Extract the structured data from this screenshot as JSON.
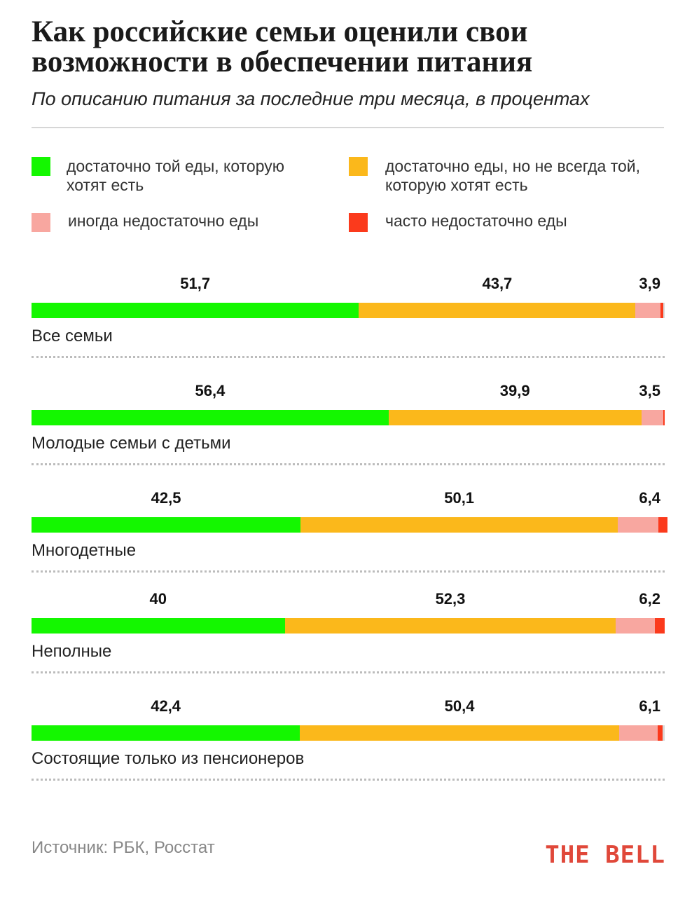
{
  "header": {
    "title": "Как российские семьи оценили свои возможности в обеспечении питания",
    "subtitle": "По описанию питания за последние три месяца, в процентах"
  },
  "legend": [
    {
      "label": "достаточно той еды, которую хотят есть",
      "color": "#14f700"
    },
    {
      "label": "достаточно еды, но не всегда той, которую хотят есть",
      "color": "#fbb81b"
    },
    {
      "label": "иногда недостаточно еды",
      "color": "#f8a7a0"
    },
    {
      "label": "часто недостаточно еды",
      "color": "#fb3a1c"
    }
  ],
  "chart_data": {
    "type": "bar",
    "orientation": "horizontal-stacked",
    "unit": "%",
    "categories": [
      "Все семьи",
      "Молодые семьи с детьми",
      "Многодетные",
      "Неполные",
      "Состоящие только из пенсионеров"
    ],
    "series": [
      {
        "name": "достаточно той еды, которую хотят есть",
        "color": "#14f700",
        "values": [
          51.7,
          56.4,
          42.5,
          40,
          42.4
        ],
        "labels": [
          "51,7",
          "56,4",
          "42,5",
          "40",
          "42,4"
        ]
      },
      {
        "name": "достаточно еды, но не всегда той, которую хотят есть",
        "color": "#fbb81b",
        "values": [
          43.7,
          39.9,
          50.1,
          52.3,
          50.4
        ],
        "labels": [
          "43,7",
          "39,9",
          "50,1",
          "52,3",
          "50,4"
        ]
      },
      {
        "name": "иногда недостаточно еды",
        "color": "#f8a7a0",
        "values": [
          3.9,
          3.5,
          6.4,
          6.2,
          6.1
        ],
        "labels": [
          "3,9",
          "3,5",
          "6,4",
          "6,2",
          "6,1"
        ]
      },
      {
        "name": "часто недостаточно еды",
        "color": "#fb3a1c",
        "values": [
          0.5,
          0.2,
          1.5,
          1.5,
          0.8
        ]
      }
    ],
    "xlim": [
      0,
      100
    ],
    "remainder_color": "#d9d9d9"
  },
  "footer": {
    "source": "Источник:  РБК, Росстат",
    "logo": "THE BELL"
  }
}
